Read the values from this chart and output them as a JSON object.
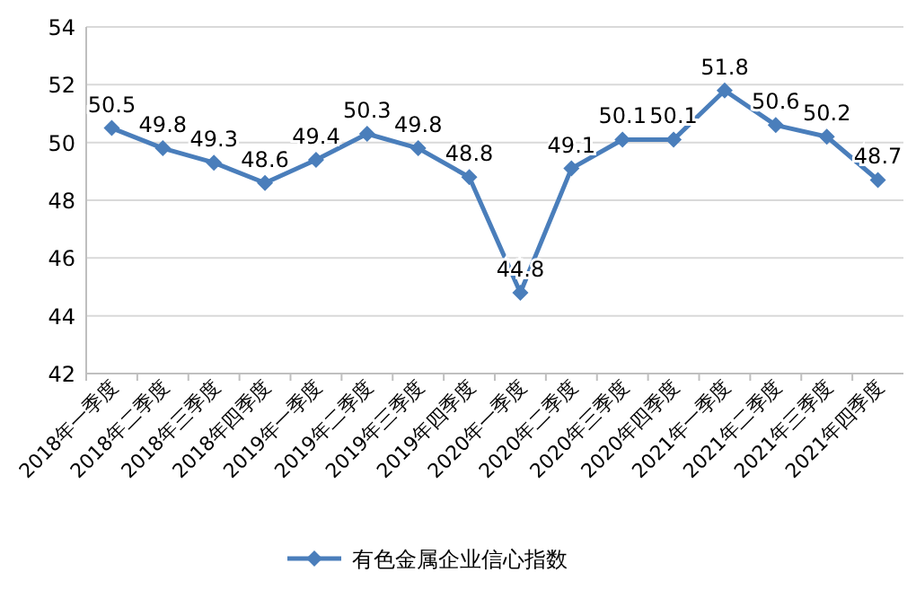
{
  "chart_data": {
    "type": "line",
    "categories": [
      "2018年一季度",
      "2018年二季度",
      "2018年三季度",
      "2018年四季度",
      "2019年一季度",
      "2019年二季度",
      "2019年三季度",
      "2019年四季度",
      "2020年一季度",
      "2020年二季度",
      "2020年三季度",
      "2020年四季度",
      "2021年一季度",
      "2021年二季度",
      "2021年三季度",
      "2021年四季度"
    ],
    "series": [
      {
        "name": "有色金属企业信心指数",
        "color": "#4a7ebb",
        "values": [
          50.5,
          49.8,
          49.3,
          48.6,
          49.4,
          50.3,
          49.8,
          48.8,
          44.8,
          49.1,
          50.1,
          50.1,
          51.8,
          50.6,
          50.2,
          48.7
        ]
      }
    ],
    "ylim": [
      42,
      54
    ],
    "yticks": [
      42,
      44,
      46,
      48,
      50,
      52,
      54
    ],
    "grid": "y",
    "legend": "bottom",
    "marker": "diamond",
    "line_style": "solid",
    "data_labels": true
  }
}
